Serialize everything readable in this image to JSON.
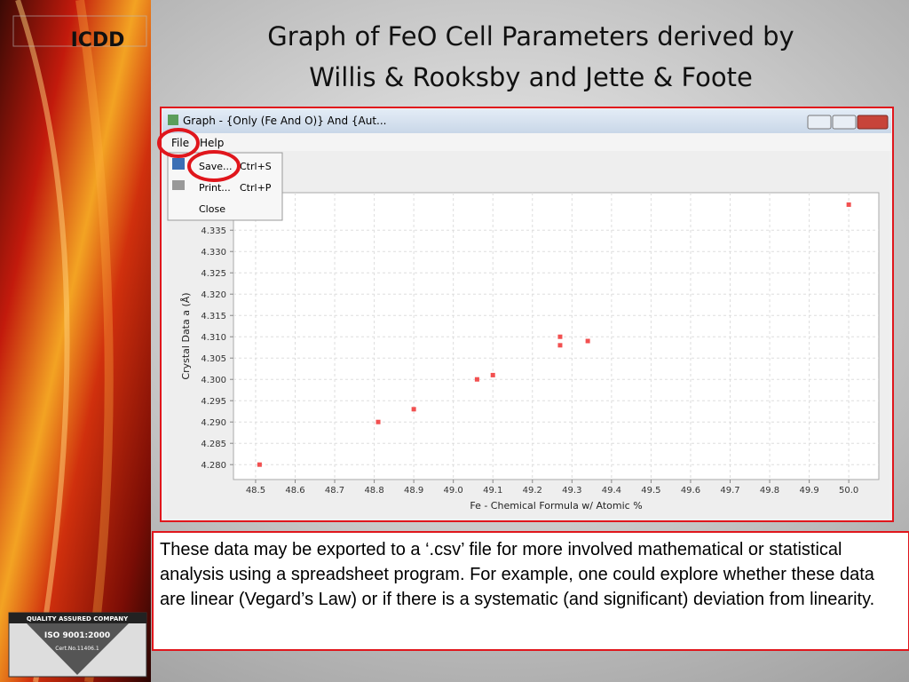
{
  "slide": {
    "title_lines": [
      "Graph of FeO Cell Parameters derived by",
      "Willis & Rooksby and Jette & Foote"
    ],
    "logo": "ICDD",
    "badge": {
      "company": "QUALITY ASSURED COMPANY",
      "iso": "ISO 9001:2000",
      "cert": "Cert.No.11406.1"
    }
  },
  "window": {
    "title": "Graph - {Only (Fe And O)} And {Aut...",
    "menu": [
      "File",
      "Help"
    ],
    "file_menu": [
      {
        "label": "Save...",
        "shortcut": "Ctrl+S"
      },
      {
        "label": "Print...",
        "shortcut": "Ctrl+P"
      },
      {
        "label": "Close"
      }
    ]
  },
  "chart_data": {
    "type": "scatter",
    "xlabel": "Fe - Chemical Formula w/ Atomic %",
    "ylabel": "Crystal Data a (Å)",
    "x": [
      48.51,
      48.81,
      48.9,
      49.06,
      49.1,
      49.27,
      49.27,
      49.34,
      50.0
    ],
    "values": [
      4.28,
      4.29,
      4.293,
      4.3,
      4.301,
      4.31,
      4.308,
      4.309,
      4.341
    ],
    "color": "#f25050",
    "xlim": [
      48.444,
      50.076
    ],
    "ylim": [
      4.2765,
      4.3438
    ],
    "xticks": [
      48.5,
      48.6,
      48.7,
      48.8,
      48.9,
      {
        "value": 49,
        "label": "49.0"
      },
      49.1,
      49.2,
      49.3,
      49.4,
      49.5,
      49.6,
      49.7,
      49.8,
      49.9,
      {
        "value": 50,
        "label": "50.0"
      }
    ],
    "yticks": [
      {
        "value": 4.28,
        "label": "4.280"
      },
      4.285,
      {
        "value": 4.29,
        "label": "4.290"
      },
      4.295,
      {
        "value": 4.3,
        "label": "4.300"
      },
      4.305,
      {
        "value": 4.31,
        "label": "4.310"
      },
      4.315,
      {
        "value": 4.32,
        "label": "4.320"
      },
      4.325,
      {
        "value": 4.33,
        "label": "4.330"
      },
      4.335
    ],
    "grid": true
  },
  "caption": "These data may be exported to a ‘.csv’ file for more involved mathematical or statistical analysis using a spreadsheet program. For example, one could explore whether these data are linear (Vegard’s Law) or if there is a systematic (and significant) deviation from linearity."
}
